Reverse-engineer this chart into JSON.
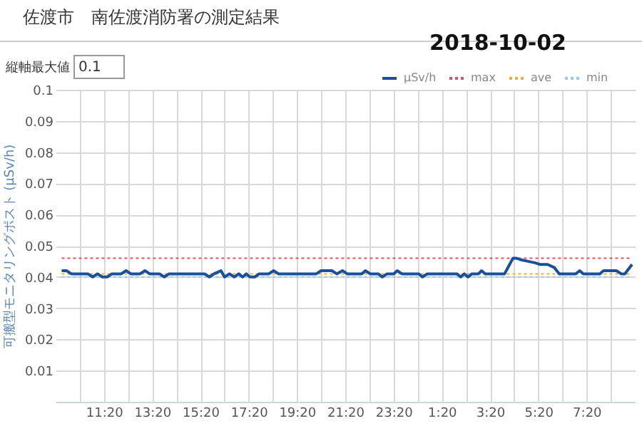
{
  "chart_data": {
    "type": "line",
    "title": "佐渡市　南佐渡消防署の測定結果",
    "subtitle": "2018-10-02",
    "ylabel": "可搬型モニタリングポスト (μSv/h)",
    "annotations": [
      "縦軸最大値",
      "0.1"
    ],
    "xlim": [
      "2018-10-01T09:20",
      "2018-10-02T09:20"
    ],
    "xticks": [
      {
        "value": "2018-10-01T10:20",
        "label": null
      },
      {
        "value": "2018-10-01T11:20",
        "label": "11:20"
      },
      {
        "value": "2018-10-01T12:20",
        "label": null
      },
      {
        "value": "2018-10-01T13:20",
        "label": "13:20"
      },
      {
        "value": "2018-10-01T14:20",
        "label": null
      },
      {
        "value": "2018-10-01T15:20",
        "label": "15:20"
      },
      {
        "value": "2018-10-01T16:20",
        "label": null
      },
      {
        "value": "2018-10-01T17:20",
        "label": "17:20"
      },
      {
        "value": "2018-10-01T18:20",
        "label": null
      },
      {
        "value": "2018-10-01T19:20",
        "label": "19:20"
      },
      {
        "value": "2018-10-01T20:20",
        "label": null
      },
      {
        "value": "2018-10-01T21:20",
        "label": "21:20"
      },
      {
        "value": "2018-10-01T22:20",
        "label": null
      },
      {
        "value": "2018-10-01T23:20",
        "label": "23:20"
      },
      {
        "value": "2018-10-02T00:20",
        "label": null
      },
      {
        "value": "2018-10-02T01:20",
        "label": "1:20"
      },
      {
        "value": "2018-10-02T02:20",
        "label": null
      },
      {
        "value": "2018-10-02T03:20",
        "label": "3:20"
      },
      {
        "value": "2018-10-02T04:20",
        "label": null
      },
      {
        "value": "2018-10-02T05:20",
        "label": "5:20"
      },
      {
        "value": "2018-10-02T06:20",
        "label": null
      },
      {
        "value": "2018-10-02T07:20",
        "label": "7:20"
      },
      {
        "value": "2018-10-02T08:20",
        "label": null
      }
    ],
    "ylim": [
      0,
      0.1
    ],
    "yticks": [
      {
        "value": 0,
        "label": null
      },
      0.01,
      0.02,
      0.03,
      0.04,
      0.05,
      0.06,
      0.07,
      0.08,
      0.09,
      0.1
    ],
    "grid": true,
    "legend": "top right",
    "marker": "none",
    "series": [
      {
        "name": "μSv/h",
        "type": "line",
        "line_style": "solid",
        "color": "#1a4f9c",
        "x": [
          "2018-10-01T09:35",
          "2018-10-01T09:47",
          "2018-10-01T09:59",
          "2018-10-01T10:40",
          "2018-10-01T10:52",
          "2018-10-01T11:04",
          "2018-10-01T11:16",
          "2018-10-01T11:28",
          "2018-10-01T11:40",
          "2018-10-01T12:03",
          "2018-10-01T12:15",
          "2018-10-01T12:27",
          "2018-10-01T12:50",
          "2018-10-01T13:02",
          "2018-10-01T13:14",
          "2018-10-01T13:38",
          "2018-10-01T13:50",
          "2018-10-01T14:02",
          "2018-10-01T15:30",
          "2018-10-01T15:42",
          "2018-10-01T15:54",
          "2018-10-01T16:11",
          "2018-10-01T16:20",
          "2018-10-01T16:32",
          "2018-10-01T16:44",
          "2018-10-01T16:55",
          "2018-10-01T17:05",
          "2018-10-01T17:14",
          "2018-10-01T17:23",
          "2018-10-01T17:35",
          "2018-10-01T17:46",
          "2018-10-01T18:10",
          "2018-10-01T18:22",
          "2018-10-01T18:34",
          "2018-10-01T20:08",
          "2018-10-01T20:20",
          "2018-10-01T20:32",
          "2018-10-01T20:47",
          "2018-10-01T20:59",
          "2018-10-01T21:13",
          "2018-10-01T21:25",
          "2018-10-01T22:01",
          "2018-10-01T22:10",
          "2018-10-01T22:22",
          "2018-10-01T22:42",
          "2018-10-01T22:52",
          "2018-10-01T23:04",
          "2018-10-01T23:21",
          "2018-10-01T23:29",
          "2018-10-01T23:41",
          "2018-10-02T00:23",
          "2018-10-02T00:32",
          "2018-10-02T00:44",
          "2018-10-02T01:58",
          "2018-10-02T02:07",
          "2018-10-02T02:16",
          "2018-10-02T02:25",
          "2018-10-02T02:35",
          "2018-10-02T02:51",
          "2018-10-02T02:59",
          "2018-10-02T03:08",
          "2018-10-02T03:56",
          "2018-10-02T04:17",
          "2018-10-02T04:26",
          "2018-10-02T04:37",
          "2018-10-02T04:55",
          "2018-10-02T05:13",
          "2018-10-02T05:25",
          "2018-10-02T05:43",
          "2018-10-02T06:00",
          "2018-10-02T06:12",
          "2018-10-02T06:53",
          "2018-10-02T07:03",
          "2018-10-02T07:12",
          "2018-10-02T07:53",
          "2018-10-02T08:02",
          "2018-10-02T08:34",
          "2018-10-02T08:46",
          "2018-10-02T08:55",
          "2018-10-02T09:13"
        ],
        "values": [
          0.042,
          0.042,
          0.041,
          0.041,
          0.04,
          0.041,
          0.04,
          0.04,
          0.041,
          0.041,
          0.042,
          0.041,
          0.041,
          0.042,
          0.041,
          0.041,
          0.04,
          0.041,
          0.041,
          0.04,
          0.041,
          0.042,
          0.04,
          0.041,
          0.04,
          0.041,
          0.04,
          0.041,
          0.04,
          0.04,
          0.041,
          0.041,
          0.042,
          0.041,
          0.041,
          0.042,
          0.042,
          0.042,
          0.041,
          0.042,
          0.041,
          0.041,
          0.042,
          0.041,
          0.041,
          0.04,
          0.041,
          0.041,
          0.042,
          0.041,
          0.041,
          0.04,
          0.041,
          0.041,
          0.04,
          0.041,
          0.04,
          0.041,
          0.041,
          0.042,
          0.041,
          0.041,
          0.046,
          0.046,
          0.0455,
          0.045,
          0.0445,
          0.044,
          0.044,
          0.043,
          0.041,
          0.041,
          0.042,
          0.041,
          0.041,
          0.042,
          0.042,
          0.041,
          0.041,
          0.044
        ]
      },
      {
        "name": "max",
        "type": "line",
        "line_style": "dotted",
        "color": "#e0506a",
        "x": [
          "2018-10-01T09:35",
          "2018-10-02T09:13"
        ],
        "values": [
          0.046,
          0.046
        ]
      },
      {
        "name": "ave",
        "type": "line",
        "line_style": "dotted",
        "color": "#f0b030",
        "x": [
          "2018-10-01T09:35",
          "2018-10-02T09:13"
        ],
        "values": [
          0.041,
          0.041
        ]
      },
      {
        "name": "min",
        "type": "line",
        "line_style": "dotted",
        "color": "#9cc8e4",
        "x": [
          "2018-10-01T09:35",
          "2018-10-02T09:13"
        ],
        "values": [
          0.04,
          0.04
        ]
      }
    ]
  }
}
